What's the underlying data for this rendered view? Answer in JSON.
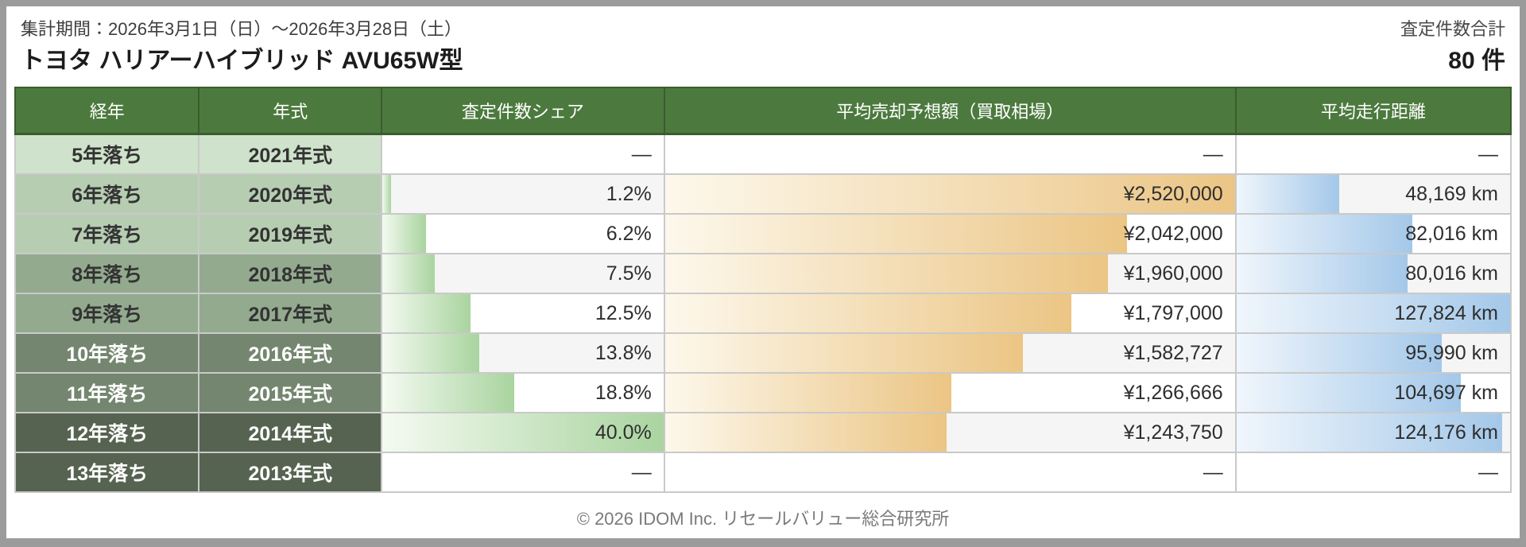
{
  "colors": {
    "frame_gray": "#9b9b9b",
    "header_green": "#4c7a3e",
    "header_border": "#3a5c2e",
    "row_alt_bg": "#f5f5f5",
    "share_bar_start": "#f4faf1",
    "share_bar_end": "#a9d49f",
    "price_bar_start": "#fdf8ec",
    "price_bar_end": "#ebc584",
    "mileage_bar_start": "#f0f6fc",
    "mileage_bar_end": "#a4c8e9"
  },
  "header": {
    "period": "集計期間：2026年3月1日（日）～2026年3月28日（土）",
    "title": "トヨタ ハリアーハイブリッド AVU65W型",
    "total_label": "査定件数合計",
    "total_value": "80 件"
  },
  "table": {
    "columns": [
      "経年",
      "年式",
      "査定件数シェア",
      "平均売却予想額（買取相場）",
      "平均走行距離"
    ],
    "empty_placeholder": "—",
    "rows": [
      {
        "age": "5年落ち",
        "year": "2021年式",
        "share_pct": null,
        "share_text": "—",
        "price": null,
        "price_text": "—",
        "mileage": null,
        "mileage_text": "—",
        "label_bg": "#cfe2cb",
        "label_fg": "#333333"
      },
      {
        "age": "6年落ち",
        "year": "2020年式",
        "share_pct": 1.2,
        "share_text": "1.2%",
        "price": 2520000,
        "price_text": "¥2,520,000",
        "mileage": 48169,
        "mileage_text": "48,169 km",
        "label_bg": "#b6cdb2",
        "label_fg": "#333333"
      },
      {
        "age": "7年落ち",
        "year": "2019年式",
        "share_pct": 6.2,
        "share_text": "6.2%",
        "price": 2042000,
        "price_text": "¥2,042,000",
        "mileage": 82016,
        "mileage_text": "82,016 km",
        "label_bg": "#b6cdb2",
        "label_fg": "#333333"
      },
      {
        "age": "8年落ち",
        "year": "2018年式",
        "share_pct": 7.5,
        "share_text": "7.5%",
        "price": 1960000,
        "price_text": "¥1,960,000",
        "mileage": 80016,
        "mileage_text": "80,016 km",
        "label_bg": "#93aa8f",
        "label_fg": "#333333"
      },
      {
        "age": "9年落ち",
        "year": "2017年式",
        "share_pct": 12.5,
        "share_text": "12.5%",
        "price": 1797000,
        "price_text": "¥1,797,000",
        "mileage": 127824,
        "mileage_text": "127,824 km",
        "label_bg": "#93aa8f",
        "label_fg": "#333333"
      },
      {
        "age": "10年落ち",
        "year": "2016年式",
        "share_pct": 13.8,
        "share_text": "13.8%",
        "price": 1582727,
        "price_text": "¥1,582,727",
        "mileage": 95990,
        "mileage_text": "95,990 km",
        "label_bg": "#74866f",
        "label_fg": "#ffffff"
      },
      {
        "age": "11年落ち",
        "year": "2015年式",
        "share_pct": 18.8,
        "share_text": "18.8%",
        "price": 1266666,
        "price_text": "¥1,266,666",
        "mileage": 104697,
        "mileage_text": "104,697 km",
        "label_bg": "#74866f",
        "label_fg": "#ffffff"
      },
      {
        "age": "12年落ち",
        "year": "2014年式",
        "share_pct": 40.0,
        "share_text": "40.0%",
        "price": 1243750,
        "price_text": "¥1,243,750",
        "mileage": 124176,
        "mileage_text": "124,176 km",
        "label_bg": "#566350",
        "label_fg": "#ffffff"
      },
      {
        "age": "13年落ち",
        "year": "2013年式",
        "share_pct": null,
        "share_text": "—",
        "price": null,
        "price_text": "—",
        "mileage": null,
        "mileage_text": "—",
        "label_bg": "#566350",
        "label_fg": "#ffffff"
      }
    ]
  },
  "footer": {
    "copyright": "© 2026 IDOM Inc. リセールバリュー総合研究所"
  },
  "chart_data": {
    "type": "table",
    "title": "トヨタ ハリアーハイブリッド AVU65W型",
    "subtitle": "集計期間：2026年3月1日（日）～2026年3月28日（土）",
    "total_assessments": 80,
    "total_assessments_label": "査定件数合計 80 件",
    "columns": [
      "経年",
      "年式",
      "査定件数シェア",
      "平均売却予想額（買取相場）",
      "平均走行距離"
    ],
    "units": {
      "査定件数シェア": "%",
      "平均売却予想額（買取相場）": "JPY",
      "平均走行距離": "km"
    },
    "rows": [
      [
        "5年落ち",
        "2021年式",
        null,
        null,
        null
      ],
      [
        "6年落ち",
        "2020年式",
        1.2,
        2520000,
        48169
      ],
      [
        "7年落ち",
        "2019年式",
        6.2,
        2042000,
        82016
      ],
      [
        "8年落ち",
        "2018年式",
        7.5,
        1960000,
        80016
      ],
      [
        "9年落ち",
        "2017年式",
        12.5,
        1797000,
        127824
      ],
      [
        "10年落ち",
        "2016年式",
        13.8,
        1582727,
        95990
      ],
      [
        "11年落ち",
        "2015年式",
        18.8,
        1266666,
        104697
      ],
      [
        "12年落ち",
        "2014年式",
        40.0,
        1243750,
        124176
      ],
      [
        "13年落ち",
        "2013年式",
        null,
        null,
        null
      ]
    ],
    "bar_encoding": "in-cell horizontal bars scaled to each column's maximum value (green=share, orange=price, blue=mileage)"
  }
}
